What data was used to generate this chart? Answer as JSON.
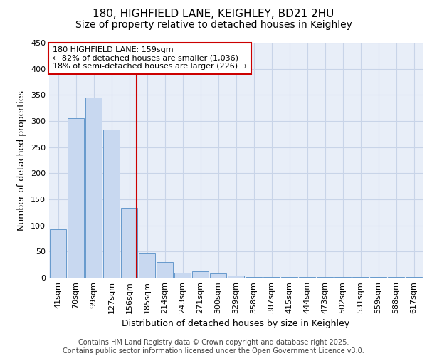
{
  "title1": "180, HIGHFIELD LANE, KEIGHLEY, BD21 2HU",
  "title2": "Size of property relative to detached houses in Keighley",
  "xlabel": "Distribution of detached houses by size in Keighley",
  "ylabel": "Number of detached properties",
  "categories": [
    "41sqm",
    "70sqm",
    "99sqm",
    "127sqm",
    "156sqm",
    "185sqm",
    "214sqm",
    "243sqm",
    "271sqm",
    "300sqm",
    "329sqm",
    "358sqm",
    "387sqm",
    "415sqm",
    "444sqm",
    "473sqm",
    "502sqm",
    "531sqm",
    "559sqm",
    "588sqm",
    "617sqm"
  ],
  "values": [
    93,
    305,
    345,
    283,
    133,
    47,
    30,
    9,
    12,
    8,
    4,
    2,
    2,
    2,
    1,
    1,
    1,
    1,
    1,
    1,
    1
  ],
  "bar_color": "#c8d8f0",
  "bar_edge_color": "#6699cc",
  "vline_x_index": 4,
  "vline_color": "#cc0000",
  "annotation_line1": "180 HIGHFIELD LANE: 159sqm",
  "annotation_line2": "← 82% of detached houses are smaller (1,036)",
  "annotation_line3": "18% of semi-detached houses are larger (226) →",
  "annotation_box_color": "#cc0000",
  "ylim": [
    0,
    450
  ],
  "yticks": [
    0,
    50,
    100,
    150,
    200,
    250,
    300,
    350,
    400,
    450
  ],
  "grid_color": "#c8d4e8",
  "background_color": "#e8eef8",
  "footer_text": "Contains HM Land Registry data © Crown copyright and database right 2025.\nContains public sector information licensed under the Open Government Licence v3.0.",
  "title1_fontsize": 11,
  "title2_fontsize": 10,
  "axis_label_fontsize": 9,
  "tick_fontsize": 8,
  "annotation_fontsize": 8,
  "footer_fontsize": 7
}
